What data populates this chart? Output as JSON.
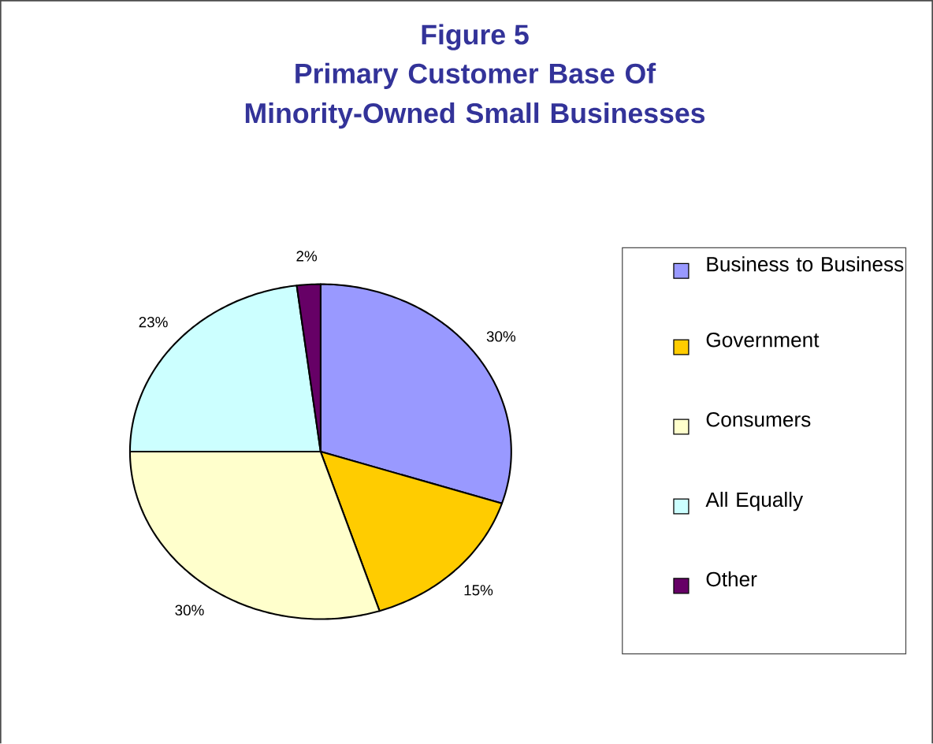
{
  "chart_data": {
    "type": "pie",
    "title": "Figure 5",
    "subtitle": "Primary Customer Base Of Minority-Owned Small Businesses",
    "categories": [
      "Business to Business",
      "Government",
      "Consumers",
      "All Equally",
      "Other"
    ],
    "values": [
      30,
      15,
      30,
      23,
      2
    ],
    "value_labels": [
      "30%",
      "15%",
      "30%",
      "23%",
      "2%"
    ],
    "colors": [
      "#9999ff",
      "#ffcc00",
      "#ffffcc",
      "#ccffff",
      "#660066"
    ],
    "legend": "right"
  }
}
